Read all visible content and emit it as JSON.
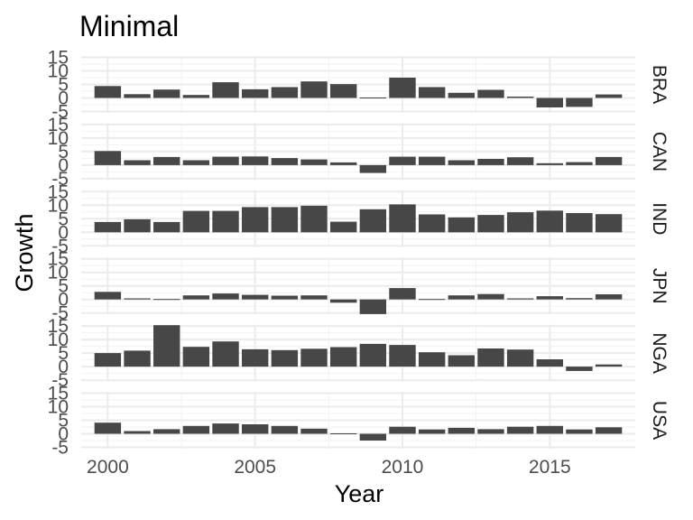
{
  "chart_data": {
    "type": "bar",
    "title": "Minimal",
    "xlabel": "Year",
    "ylabel": "Growth",
    "x": [
      2000,
      2001,
      2002,
      2003,
      2004,
      2005,
      2006,
      2007,
      2008,
      2009,
      2010,
      2011,
      2012,
      2013,
      2014,
      2015,
      2016,
      2017
    ],
    "xlim": [
      1999.1,
      2017.9
    ],
    "ylim": [
      -5.5,
      15.5
    ],
    "x_ticks": [
      "2000",
      "2005",
      "2010",
      "2015"
    ],
    "x_tick_values": [
      2000,
      2005,
      2010,
      2015
    ],
    "y_ticks": [
      "-5",
      "0",
      "5",
      "10",
      "15"
    ],
    "y_tick_values": [
      -5,
      0,
      5,
      10,
      15
    ],
    "grid": true,
    "facet_position": "right",
    "bar_color": "#474747",
    "series": [
      {
        "name": "BRA",
        "values": [
          4.4,
          1.4,
          3.1,
          1.1,
          5.8,
          3.2,
          4.0,
          6.1,
          5.1,
          -0.1,
          7.5,
          4.0,
          1.9,
          3.0,
          0.5,
          -3.5,
          -3.3,
          1.3
        ]
      },
      {
        "name": "CAN",
        "values": [
          5.2,
          1.8,
          3.0,
          1.8,
          3.1,
          3.2,
          2.6,
          2.1,
          1.0,
          -2.9,
          3.1,
          3.1,
          1.8,
          2.3,
          2.9,
          0.7,
          1.1,
          3.0
        ]
      },
      {
        "name": "IND",
        "values": [
          3.8,
          4.8,
          3.8,
          7.9,
          7.9,
          9.3,
          9.3,
          9.8,
          3.9,
          8.5,
          10.3,
          6.6,
          5.5,
          6.4,
          7.4,
          8.0,
          7.1,
          6.7
        ]
      },
      {
        "name": "JPN",
        "values": [
          2.8,
          0.4,
          0.1,
          1.5,
          2.2,
          1.7,
          1.4,
          1.5,
          -1.2,
          -5.4,
          4.2,
          -0.1,
          1.5,
          2.0,
          0.4,
          1.2,
          0.5,
          1.9
        ]
      },
      {
        "name": "NGA",
        "values": [
          5.0,
          5.9,
          15.3,
          7.3,
          9.3,
          6.4,
          6.1,
          6.6,
          7.2,
          8.4,
          8.0,
          5.3,
          4.2,
          6.7,
          6.3,
          2.7,
          -1.6,
          0.8
        ]
      },
      {
        "name": "USA",
        "values": [
          4.1,
          1.0,
          1.7,
          2.9,
          3.8,
          3.5,
          2.9,
          1.9,
          -0.1,
          -2.5,
          2.6,
          1.6,
          2.2,
          1.7,
          2.6,
          2.9,
          1.6,
          2.4
        ]
      }
    ]
  }
}
